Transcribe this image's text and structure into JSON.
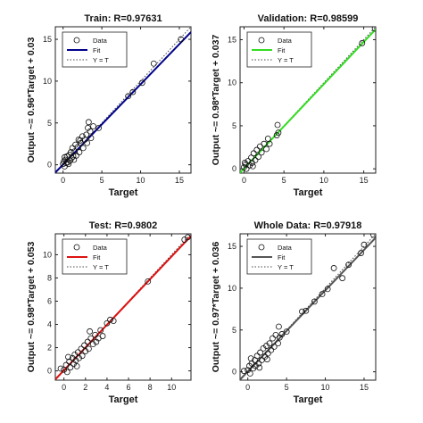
{
  "chart_data": [
    {
      "type": "scatter",
      "title": "Train: R=0.97631",
      "xlabel": "Target",
      "ylabel": "Output ~= 0.96*Target + 0.03",
      "xlim": [
        -1,
        16.5
      ],
      "ylim": [
        -1,
        16.5
      ],
      "xticks": [
        0,
        5,
        10,
        15
      ],
      "yticks": [
        0,
        5,
        10,
        15
      ],
      "fit": {
        "slope": 0.96,
        "intercept": 0.03,
        "color": "#00008b"
      },
      "legend": {
        "position": "top-left",
        "labels": [
          "Data",
          "Fit",
          "Y = T"
        ]
      },
      "points": [
        [
          0,
          0.1
        ],
        [
          0.1,
          0.4
        ],
        [
          0.2,
          -0.2
        ],
        [
          0.3,
          0.6
        ],
        [
          0.4,
          0.2
        ],
        [
          0.5,
          1.0
        ],
        [
          0.6,
          0.3
        ],
        [
          0.8,
          1.2
        ],
        [
          0.9,
          0.5
        ],
        [
          1.0,
          1.5
        ],
        [
          1.1,
          0.8
        ],
        [
          1.2,
          2.0
        ],
        [
          1.3,
          1.0
        ],
        [
          1.5,
          1.6
        ],
        [
          1.6,
          2.4
        ],
        [
          1.7,
          1.1
        ],
        [
          1.9,
          2.1
        ],
        [
          2.0,
          3.0
        ],
        [
          2.1,
          1.5
        ],
        [
          2.3,
          2.6
        ],
        [
          2.5,
          3.4
        ],
        [
          2.6,
          2.0
        ],
        [
          2.8,
          3.0
        ],
        [
          3.0,
          3.6
        ],
        [
          3.1,
          2.6
        ],
        [
          3.2,
          4.4
        ],
        [
          3.3,
          5.1
        ],
        [
          3.5,
          4.0
        ],
        [
          3.6,
          3.2
        ],
        [
          3.9,
          4.6
        ],
        [
          4.6,
          4.4
        ],
        [
          8.4,
          8.2
        ],
        [
          9.0,
          8.7
        ],
        [
          10.2,
          9.8
        ],
        [
          11.7,
          12.1
        ],
        [
          15.2,
          15.0
        ],
        [
          0.2,
          0.9
        ],
        [
          0.7,
          0.1
        ],
        [
          1.4,
          0.6
        ],
        [
          2.2,
          2.9
        ]
      ]
    },
    {
      "type": "scatter",
      "title": "Validation: R=0.98599",
      "xlabel": "Target",
      "ylabel": "Output ~= 0.98*Target + 0.037",
      "xlim": [
        -0.5,
        16.5
      ],
      "ylim": [
        -0.5,
        16.5
      ],
      "xticks": [
        0,
        5,
        10,
        15
      ],
      "yticks": [
        0,
        5,
        10,
        15
      ],
      "fit": {
        "slope": 0.98,
        "intercept": 0.037,
        "color": "#33dd22"
      },
      "legend": {
        "position": "top-left",
        "labels": [
          "Data",
          "Fit",
          "Y = T"
        ]
      },
      "points": [
        [
          0,
          0.2
        ],
        [
          0.2,
          0.5
        ],
        [
          0.3,
          0.0
        ],
        [
          0.5,
          0.9
        ],
        [
          0.7,
          0.4
        ],
        [
          0.9,
          1.3
        ],
        [
          1.0,
          0.7
        ],
        [
          1.2,
          1.8
        ],
        [
          1.4,
          1.0
        ],
        [
          1.6,
          2.2
        ],
        [
          1.8,
          1.4
        ],
        [
          2.0,
          2.6
        ],
        [
          2.2,
          1.9
        ],
        [
          2.5,
          2.9
        ],
        [
          2.8,
          2.3
        ],
        [
          3.0,
          3.5
        ],
        [
          3.2,
          2.9
        ],
        [
          4.1,
          3.9
        ],
        [
          4.3,
          4.2
        ],
        [
          4.2,
          5.1
        ],
        [
          14.8,
          14.6
        ],
        [
          16.4,
          16.3
        ],
        [
          0.1,
          0.7
        ],
        [
          1.1,
          0.3
        ]
      ]
    },
    {
      "type": "scatter",
      "title": "Test: R=0.9802",
      "xlabel": "Target",
      "ylabel": "Output ~= 0.98*Target + 0.053",
      "xlim": [
        -0.8,
        11.8
      ],
      "ylim": [
        -0.8,
        11.8
      ],
      "xticks": [
        0,
        2,
        4,
        6,
        8,
        10
      ],
      "yticks": [
        0,
        2,
        4,
        6,
        8,
        10
      ],
      "fit": {
        "slope": 0.98,
        "intercept": 0.053,
        "color": "#dd1111"
      },
      "legend": {
        "position": "top-left",
        "labels": [
          "Data",
          "Fit",
          "Y = T"
        ]
      },
      "points": [
        [
          -0.3,
          0.2
        ],
        [
          0,
          0.1
        ],
        [
          0.2,
          0.5
        ],
        [
          0.3,
          -0.1
        ],
        [
          0.5,
          0.8
        ],
        [
          0.6,
          0.3
        ],
        [
          0.8,
          1.1
        ],
        [
          0.9,
          0.6
        ],
        [
          1.0,
          1.4
        ],
        [
          1.1,
          0.9
        ],
        [
          1.3,
          1.6
        ],
        [
          1.4,
          1.1
        ],
        [
          1.6,
          1.9
        ],
        [
          1.7,
          1.3
        ],
        [
          1.9,
          2.2
        ],
        [
          2.0,
          1.7
        ],
        [
          2.2,
          2.5
        ],
        [
          2.3,
          1.9
        ],
        [
          2.5,
          2.8
        ],
        [
          2.7,
          2.3
        ],
        [
          2.9,
          3.1
        ],
        [
          3.0,
          2.5
        ],
        [
          3.2,
          2.8
        ],
        [
          3.4,
          3.5
        ],
        [
          3.6,
          3.0
        ],
        [
          4.0,
          4.1
        ],
        [
          4.3,
          4.4
        ],
        [
          4.6,
          4.3
        ],
        [
          7.8,
          7.7
        ],
        [
          11.2,
          11.3
        ],
        [
          11.5,
          11.5
        ],
        [
          0.4,
          1.2
        ],
        [
          1.2,
          0.4
        ],
        [
          2.4,
          3.4
        ]
      ]
    },
    {
      "type": "scatter",
      "title": "Whole Data: R=0.97918",
      "xlabel": "Target",
      "ylabel": "Output ~= 0.97*Target + 0.036",
      "xlim": [
        -1,
        16.5
      ],
      "ylim": [
        -1,
        16.5
      ],
      "xticks": [
        0,
        5,
        10,
        15
      ],
      "yticks": [
        0,
        5,
        10,
        15
      ],
      "fit": {
        "slope": 0.97,
        "intercept": 0.036,
        "color": "#555555"
      },
      "legend": {
        "position": "top-left",
        "labels": [
          "Data",
          "Fit",
          "Y = T"
        ]
      },
      "points": [
        [
          -0.5,
          0.1
        ],
        [
          0,
          0.2
        ],
        [
          0.2,
          0.7
        ],
        [
          0.3,
          -0.2
        ],
        [
          0.5,
          1.0
        ],
        [
          0.7,
          0.4
        ],
        [
          0.9,
          1.4
        ],
        [
          1.0,
          0.7
        ],
        [
          1.2,
          1.9
        ],
        [
          1.4,
          1.0
        ],
        [
          1.6,
          2.3
        ],
        [
          1.8,
          1.4
        ],
        [
          2.0,
          2.8
        ],
        [
          2.2,
          1.8
        ],
        [
          2.4,
          3.1
        ],
        [
          2.6,
          2.2
        ],
        [
          2.8,
          3.4
        ],
        [
          3.0,
          2.6
        ],
        [
          3.2,
          4.0
        ],
        [
          3.4,
          3.0
        ],
        [
          3.6,
          4.4
        ],
        [
          3.9,
          3.4
        ],
        [
          4.1,
          4.1
        ],
        [
          4.4,
          4.5
        ],
        [
          4.0,
          5.4
        ],
        [
          5.0,
          4.8
        ],
        [
          7.0,
          7.2
        ],
        [
          7.5,
          7.3
        ],
        [
          8.6,
          8.4
        ],
        [
          9.6,
          9.3
        ],
        [
          10.3,
          9.9
        ],
        [
          11.1,
          12.4
        ],
        [
          12.2,
          11.2
        ],
        [
          13.0,
          12.8
        ],
        [
          14.6,
          14.2
        ],
        [
          15.0,
          15.2
        ],
        [
          16.2,
          16.4
        ],
        [
          0.4,
          1.6
        ],
        [
          1.5,
          0.5
        ],
        [
          2.5,
          1.5
        ]
      ]
    }
  ]
}
